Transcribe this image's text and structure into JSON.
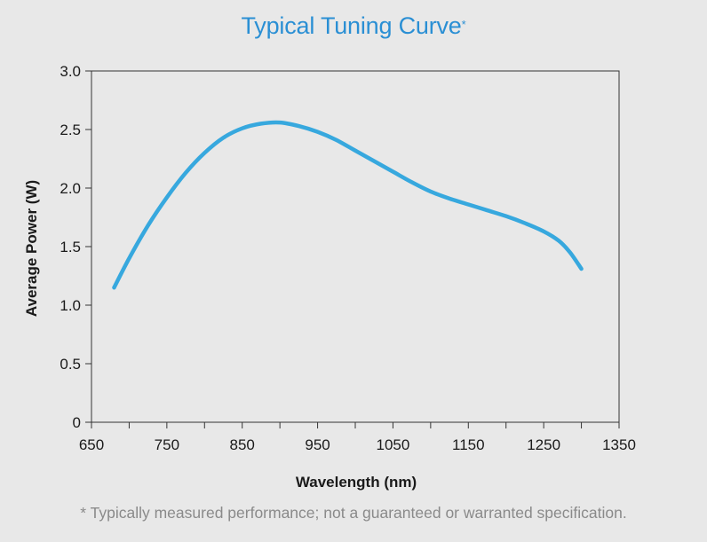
{
  "title": "Typical Tuning Curve",
  "title_mark": "*",
  "footnote": "* Typically measured performance; not a guaranteed or warranted specification.",
  "colors": {
    "line": "#37a8de",
    "title": "#2a8fd4",
    "axis": "#333333"
  },
  "chart_data": {
    "type": "line",
    "title": "Typical Tuning Curve",
    "xlabel": "Wavelength (nm)",
    "ylabel": "Average Power (W)",
    "xlim": [
      650,
      1350
    ],
    "ylim": [
      0,
      3.0
    ],
    "xticks": [
      650,
      750,
      850,
      950,
      1050,
      1150,
      1250,
      1350
    ],
    "xtick_labels": [
      "650",
      "750",
      "850",
      "950",
      "1050",
      "1150",
      "1250",
      "1350"
    ],
    "yticks": [
      0,
      0.5,
      1.0,
      1.5,
      2.0,
      2.5,
      3.0
    ],
    "ytick_labels": [
      "0",
      "0.5",
      "1.0",
      "1.5",
      "2.0",
      "2.5",
      "3.0"
    ],
    "grid": false,
    "series": [
      {
        "name": "Average Power",
        "x": [
          680,
          700,
          725,
          750,
          775,
          800,
          825,
          850,
          875,
          900,
          925,
          950,
          975,
          1000,
          1025,
          1050,
          1075,
          1100,
          1125,
          1150,
          1175,
          1200,
          1225,
          1250,
          1270,
          1285,
          1300
        ],
        "y": [
          1.15,
          1.4,
          1.68,
          1.92,
          2.13,
          2.3,
          2.43,
          2.51,
          2.55,
          2.56,
          2.53,
          2.48,
          2.41,
          2.32,
          2.23,
          2.14,
          2.05,
          1.97,
          1.91,
          1.86,
          1.81,
          1.76,
          1.7,
          1.63,
          1.55,
          1.45,
          1.31
        ]
      }
    ]
  }
}
